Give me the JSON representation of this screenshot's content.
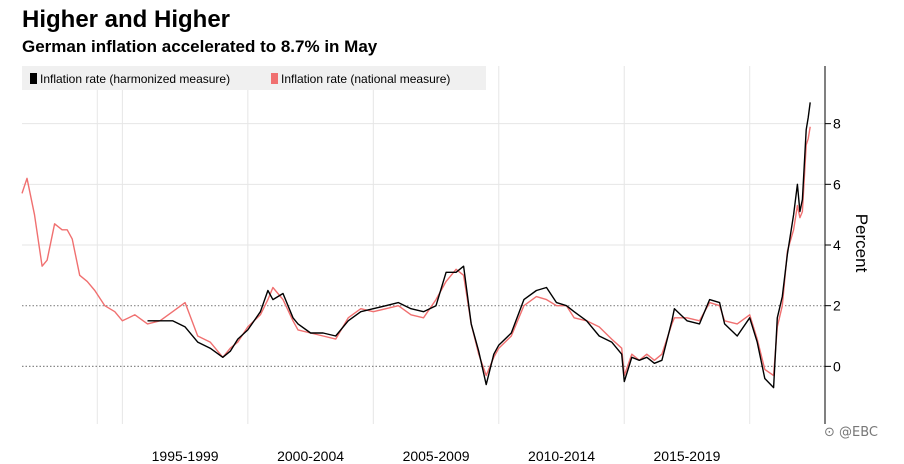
{
  "header": {
    "title": "Higher and Higher",
    "subtitle": "German inflation accelerated to 8.7% in May"
  },
  "watermark": "⊙ @EBC",
  "colors": {
    "harmonized": "#000000",
    "national": "#f07070",
    "grid": "#e6e6e6",
    "reference": "#888888",
    "legend_bg": "#f0f0f0"
  },
  "chart_data": {
    "type": "line",
    "title": "Higher and Higher",
    "subtitle": "German inflation accelerated to 8.7% in May",
    "ylabel": "Percent",
    "xlabel": "",
    "ylim": [
      -1.9,
      9.9
    ],
    "xlim": [
      1991.0,
      2023.0
    ],
    "yticks": [
      0,
      2,
      4,
      6,
      8
    ],
    "y_axis_position": "right",
    "reference_lines": [
      0,
      2
    ],
    "x_tick_labels": [
      "1995-1999",
      "2000-2004",
      "2005-2009",
      "2010-2014",
      "2015-2019"
    ],
    "x_category_ranges": [
      [
        1995,
        2000
      ],
      [
        2000,
        2005
      ],
      [
        2005,
        2010
      ],
      [
        2010,
        2015
      ],
      [
        2015,
        2020
      ]
    ],
    "x_gridlines": [
      1994,
      1995,
      2000,
      2005,
      2010,
      2015,
      2020
    ],
    "grid": true,
    "legend_position": "top-left",
    "series": [
      {
        "name": "Inflation rate (harmonized measure)",
        "color": "#000000",
        "x": [
          1996.0,
          1996.5,
          1997.0,
          1997.5,
          1998.0,
          1998.5,
          1999.0,
          1999.3,
          1999.6,
          2000.0,
          2000.5,
          2000.8,
          2001.0,
          2001.4,
          2001.8,
          2002.0,
          2002.5,
          2003.0,
          2003.5,
          2004.0,
          2004.5,
          2005.0,
          2005.5,
          2006.0,
          2006.5,
          2007.0,
          2007.5,
          2007.9,
          2008.3,
          2008.6,
          2008.9,
          2009.2,
          2009.5,
          2009.8,
          2010.0,
          2010.5,
          2011.0,
          2011.5,
          2011.9,
          2012.3,
          2012.7,
          2013.0,
          2013.5,
          2014.0,
          2014.5,
          2014.9,
          2015.0,
          2015.3,
          2015.6,
          2015.9,
          2016.2,
          2016.5,
          2016.9,
          2017.0,
          2017.5,
          2018.0,
          2018.4,
          2018.8,
          2019.0,
          2019.5,
          2020.0,
          2020.3,
          2020.6,
          2020.95,
          2021.1,
          2021.3,
          2021.5,
          2021.75,
          2021.9,
          2022.0,
          2022.1,
          2022.25,
          2022.33,
          2022.41
        ],
        "values": [
          1.5,
          1.5,
          1.5,
          1.3,
          0.8,
          0.6,
          0.3,
          0.5,
          0.9,
          1.2,
          1.8,
          2.5,
          2.2,
          2.4,
          1.6,
          1.4,
          1.1,
          1.1,
          1.0,
          1.5,
          1.8,
          1.9,
          2.0,
          2.1,
          1.9,
          1.8,
          2.0,
          3.1,
          3.1,
          3.3,
          1.4,
          0.5,
          -0.6,
          0.4,
          0.7,
          1.1,
          2.2,
          2.5,
          2.6,
          2.1,
          2.0,
          1.8,
          1.5,
          1.0,
          0.8,
          0.4,
          -0.5,
          0.3,
          0.2,
          0.3,
          0.1,
          0.2,
          1.5,
          1.9,
          1.5,
          1.4,
          2.2,
          2.1,
          1.4,
          1.0,
          1.6,
          0.8,
          -0.4,
          -0.7,
          1.6,
          2.3,
          3.7,
          5.0,
          6.0,
          5.1,
          5.5,
          7.8,
          8.2,
          8.7
        ]
      },
      {
        "name": "Inflation rate (national measure)",
        "color": "#f07070",
        "x": [
          1991.0,
          1991.2,
          1991.5,
          1991.8,
          1992.0,
          1992.3,
          1992.6,
          1992.8,
          1993.0,
          1993.3,
          1993.6,
          1993.9,
          1994.3,
          1994.7,
          1995.0,
          1995.5,
          1996.0,
          1996.5,
          1997.0,
          1997.5,
          1998.0,
          1998.5,
          1999.0,
          1999.3,
          1999.6,
          2000.0,
          2000.5,
          2000.8,
          2001.0,
          2001.4,
          2001.8,
          2002.0,
          2002.5,
          2003.0,
          2003.5,
          2004.0,
          2004.5,
          2005.0,
          2005.5,
          2006.0,
          2006.5,
          2007.0,
          2007.5,
          2007.9,
          2008.3,
          2008.6,
          2008.9,
          2009.2,
          2009.5,
          2009.8,
          2010.0,
          2010.5,
          2011.0,
          2011.5,
          2011.9,
          2012.3,
          2012.7,
          2013.0,
          2013.5,
          2014.0,
          2014.5,
          2014.9,
          2015.0,
          2015.3,
          2015.6,
          2015.9,
          2016.2,
          2016.5,
          2016.9,
          2017.0,
          2017.5,
          2018.0,
          2018.4,
          2018.8,
          2019.0,
          2019.5,
          2020.0,
          2020.3,
          2020.6,
          2020.95,
          2021.1,
          2021.3,
          2021.5,
          2021.75,
          2021.9,
          2022.0,
          2022.1,
          2022.25,
          2022.33,
          2022.41
        ],
        "values": [
          5.7,
          6.2,
          5.0,
          3.3,
          3.5,
          4.7,
          4.5,
          4.5,
          4.2,
          3.0,
          2.8,
          2.5,
          2.0,
          1.8,
          1.5,
          1.7,
          1.4,
          1.5,
          1.8,
          2.1,
          1.0,
          0.8,
          0.3,
          0.6,
          0.8,
          1.3,
          1.7,
          2.2,
          2.6,
          2.2,
          1.5,
          1.2,
          1.1,
          1.0,
          0.9,
          1.6,
          1.9,
          1.8,
          1.9,
          2.0,
          1.7,
          1.6,
          2.2,
          2.8,
          3.2,
          3.0,
          1.4,
          0.4,
          -0.3,
          0.3,
          0.6,
          1.0,
          2.0,
          2.3,
          2.2,
          2.0,
          2.0,
          1.6,
          1.5,
          1.3,
          0.9,
          0.6,
          -0.3,
          0.4,
          0.2,
          0.4,
          0.2,
          0.4,
          1.4,
          1.6,
          1.6,
          1.5,
          2.1,
          2.0,
          1.5,
          1.4,
          1.7,
          0.9,
          -0.1,
          -0.3,
          1.3,
          2.0,
          3.8,
          4.5,
          5.3,
          4.9,
          5.1,
          7.3,
          7.5,
          7.9
        ]
      }
    ]
  }
}
